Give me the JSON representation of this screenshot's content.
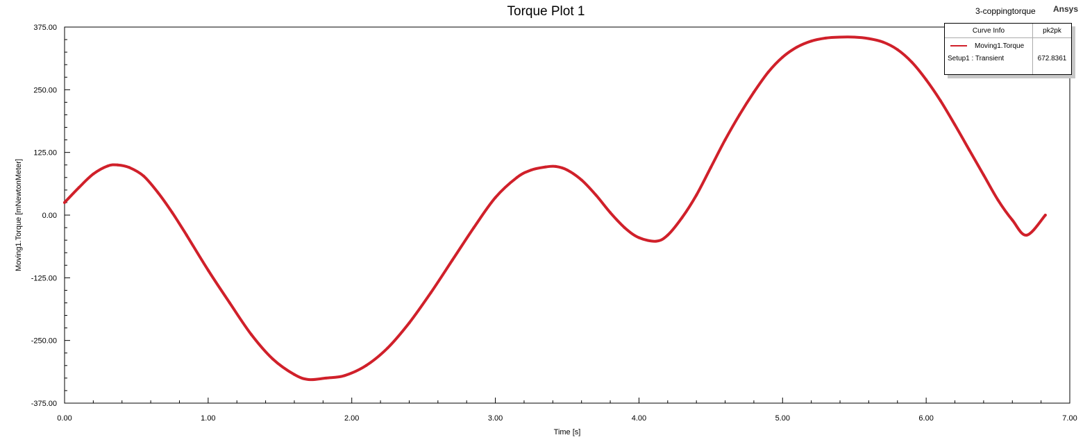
{
  "header": {
    "title": "Torque Plot 1",
    "project": "3-coppingtorque",
    "brand": "Ansys"
  },
  "legend": {
    "col_name": "Curve Info",
    "col_value": "pk2pk",
    "series_name": "Moving1.Torque",
    "setup_name": "Setup1 : Transient",
    "value": "672.8361"
  },
  "colors": {
    "series": "#d0202a",
    "axis": "#000000"
  },
  "chart_data": {
    "type": "line",
    "title": "Torque Plot 1",
    "xlabel": "Time [s]",
    "ylabel": "Moving1.Torque [mNewtonMeter]",
    "xlim": [
      0,
      7
    ],
    "ylim": [
      -375,
      375
    ],
    "xticks": [
      0,
      1,
      2,
      3,
      4,
      5,
      6,
      7
    ],
    "yticks": [
      -375,
      -250,
      -125,
      0,
      125,
      250,
      375
    ],
    "xtick_labels": [
      "0.00",
      "1.00",
      "2.00",
      "3.00",
      "4.00",
      "5.00",
      "6.00",
      "7.00"
    ],
    "ytick_labels": [
      "-375.00",
      "-250.00",
      "-125.00",
      "0.00",
      "125.00",
      "250.00",
      "375.00"
    ],
    "grid": false,
    "legend_position": "top-right",
    "series": [
      {
        "name": "Moving1.Torque",
        "x": [
          0.0,
          0.1,
          0.2,
          0.3,
          0.37,
          0.45,
          0.55,
          0.65,
          0.75,
          0.85,
          1.0,
          1.15,
          1.3,
          1.45,
          1.6,
          1.7,
          1.82,
          1.95,
          2.1,
          2.25,
          2.4,
          2.55,
          2.7,
          2.85,
          3.0,
          3.15,
          3.25,
          3.35,
          3.42,
          3.5,
          3.6,
          3.7,
          3.8,
          3.9,
          4.0,
          4.12,
          4.2,
          4.3,
          4.4,
          4.5,
          4.6,
          4.7,
          4.8,
          4.9,
          5.0,
          5.1,
          5.2,
          5.3,
          5.4,
          5.5,
          5.6,
          5.7,
          5.8,
          5.9,
          6.0,
          6.1,
          6.2,
          6.3,
          6.4,
          6.5,
          6.6,
          6.7,
          6.83
        ],
        "values": [
          25,
          55,
          82,
          98,
          100,
          95,
          78,
          45,
          5,
          -40,
          -110,
          -175,
          -238,
          -287,
          -318,
          -328,
          -325,
          -320,
          -300,
          -265,
          -215,
          -155,
          -90,
          -25,
          35,
          75,
          90,
          96,
          97,
          90,
          70,
          40,
          5,
          -25,
          -45,
          -52,
          -40,
          -5,
          40,
          95,
          150,
          200,
          245,
          285,
          315,
          335,
          347,
          353,
          355,
          355,
          352,
          345,
          330,
          305,
          270,
          228,
          180,
          130,
          80,
          30,
          -10,
          -40,
          0
        ]
      }
    ]
  }
}
